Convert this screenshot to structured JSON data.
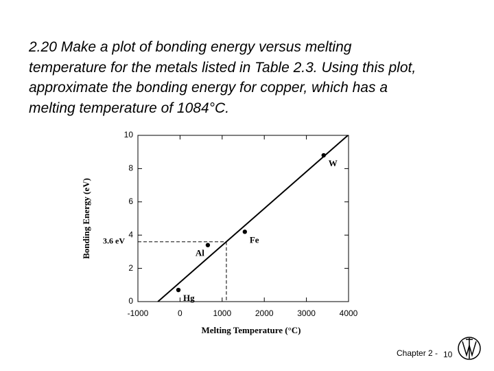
{
  "problem": {
    "lines": [
      "2.20  Make a plot of bonding energy versus melting",
      "temperature for the metals listed in Table 2.3.  Using this plot,",
      "approximate the bonding energy for copper, which has a",
      "melting temperature of 1084°C."
    ]
  },
  "chart_data": {
    "type": "scatter",
    "x_label": "Melting Temperature (°C)",
    "y_label": "Bonding Energy (eV)",
    "points": {
      "names": [
        "Hg",
        "Al",
        "Fe",
        "W"
      ],
      "x": [
        -39,
        660,
        1538,
        3410
      ],
      "y": [
        0.7,
        3.4,
        4.2,
        8.8
      ]
    },
    "fit_line": {
      "x": [
        -525,
        3984
      ],
      "y": [
        0,
        10
      ]
    },
    "estimate": {
      "x": 1100,
      "y": {
        "value": 3.6,
        "label": "3.6 eV"
      }
    },
    "xlim": [
      -1000,
      4000
    ],
    "xticks": [
      -1000,
      0,
      1000,
      2000,
      3000,
      4000
    ],
    "ylim": [
      0,
      10
    ],
    "yticks": [
      0,
      2,
      4,
      6,
      8,
      10
    ],
    "color": "#000000"
  },
  "footer": {
    "chapter": "Chapter 2 -",
    "page": "10"
  }
}
